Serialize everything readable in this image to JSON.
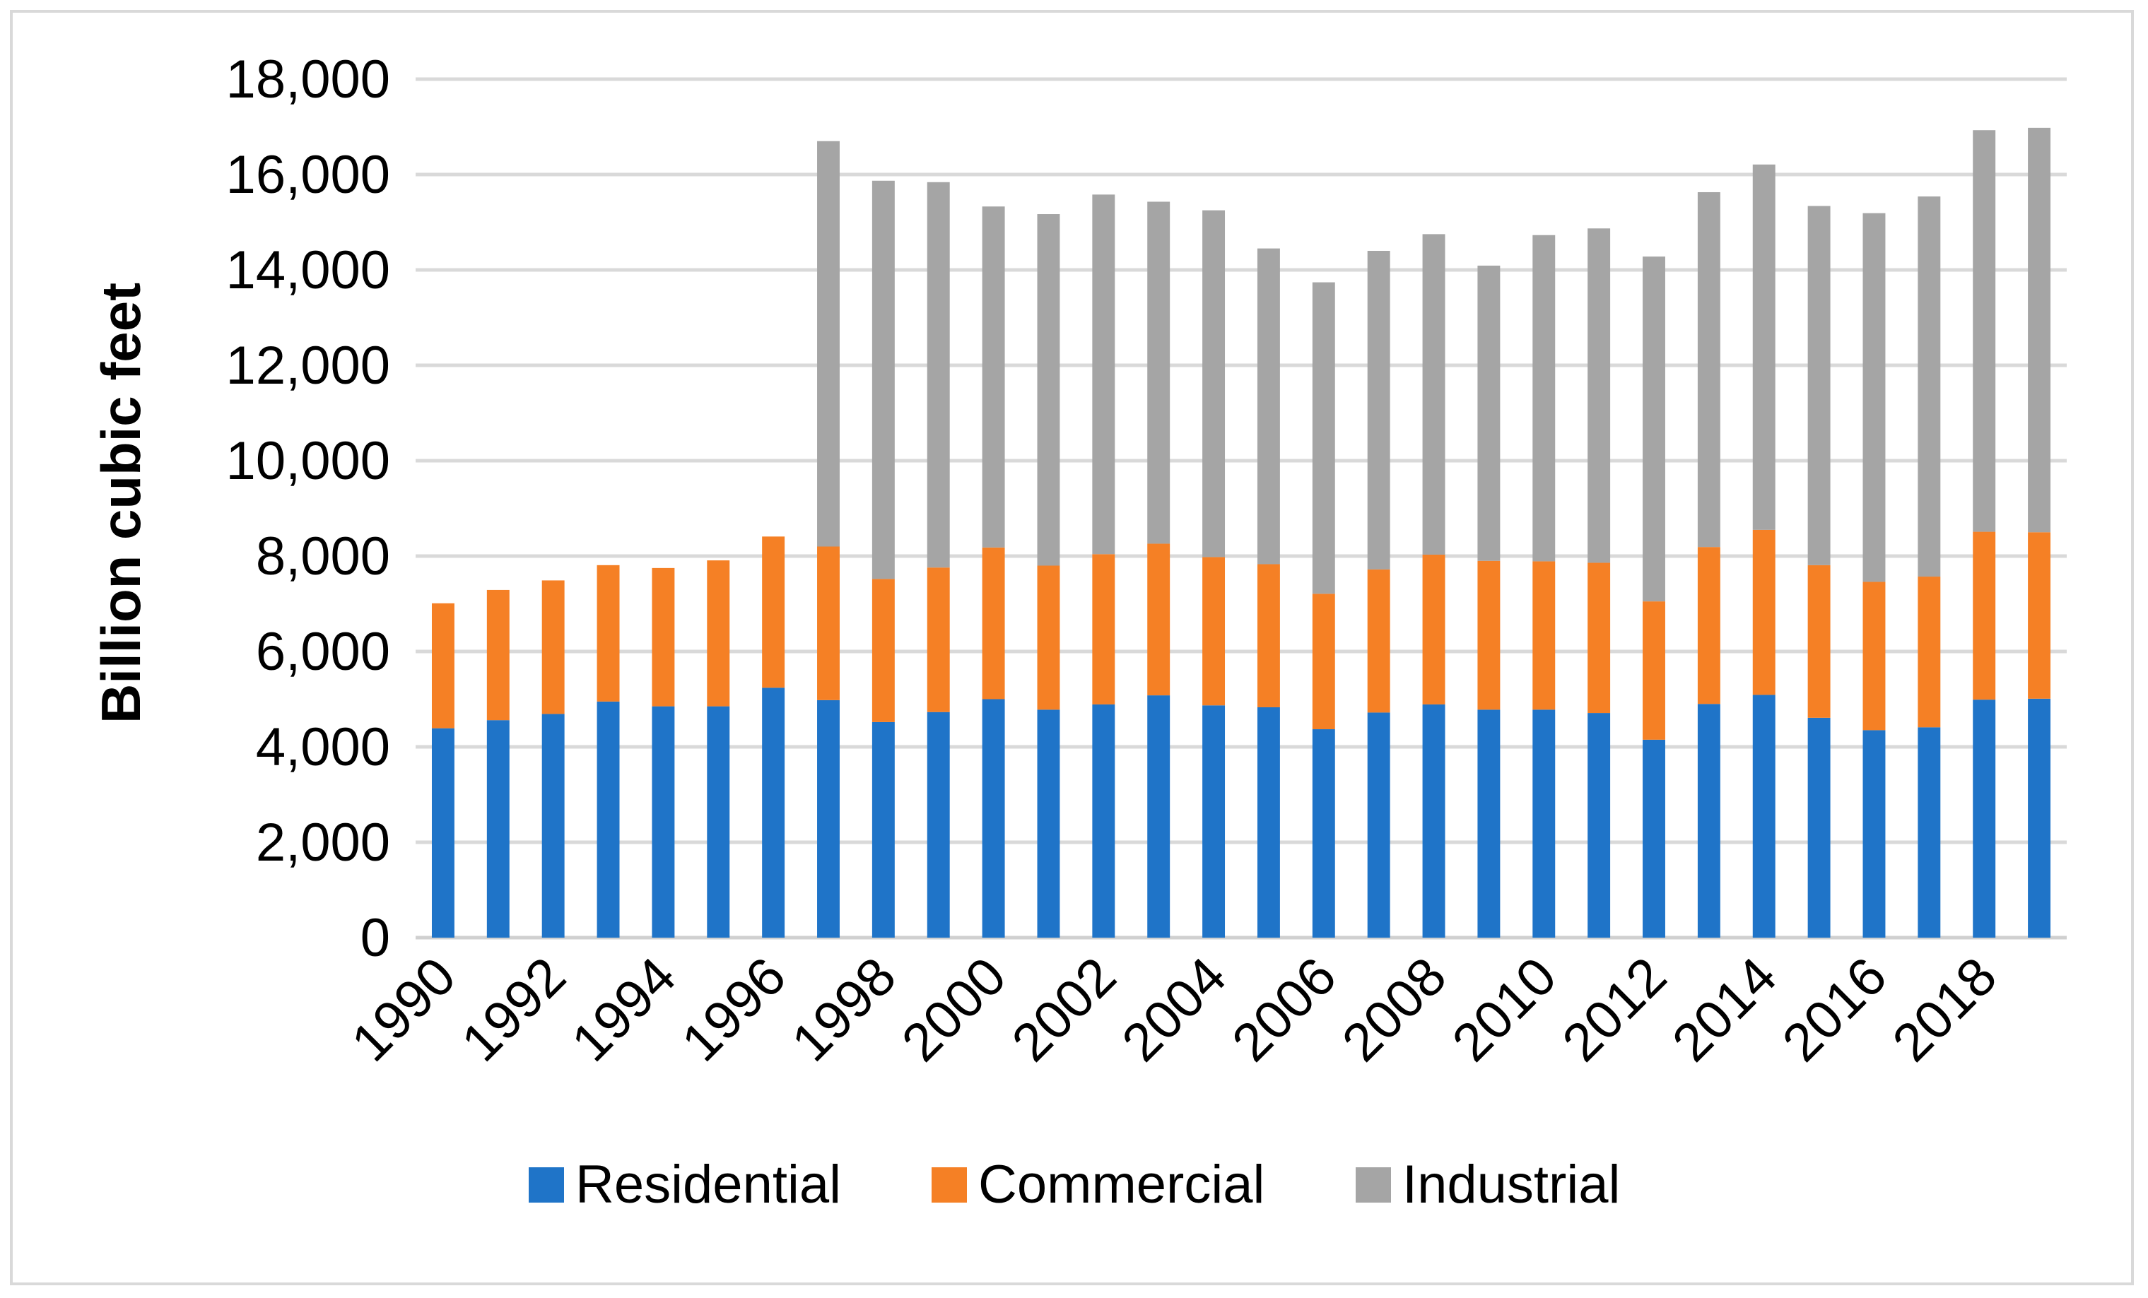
{
  "chart_data": {
    "type": "bar",
    "stacked": true,
    "title": "",
    "xlabel": "",
    "ylabel": "Billion cubic feet",
    "ylim": [
      0,
      18000
    ],
    "y_ticks": [
      0,
      2000,
      4000,
      6000,
      8000,
      10000,
      12000,
      14000,
      16000,
      18000
    ],
    "y_tick_labels": [
      "0",
      "2,000",
      "4,000",
      "6,000",
      "8,000",
      "10,000",
      "12,000",
      "14,000",
      "16,000",
      "18,000"
    ],
    "grid": true,
    "legend_position": "bottom",
    "categories": [
      "1990",
      "1991",
      "1992",
      "1993",
      "1994",
      "1995",
      "1996",
      "1997",
      "1998",
      "1999",
      "2000",
      "2001",
      "2002",
      "2003",
      "2004",
      "2005",
      "2006",
      "2007",
      "2008",
      "2009",
      "2010",
      "2011",
      "2012",
      "2013",
      "2014",
      "2015",
      "2016",
      "2017",
      "2018",
      "2019"
    ],
    "x_tick_labels": [
      "1990",
      "",
      "1992",
      "",
      "1994",
      "",
      "1996",
      "",
      "1998",
      "",
      "2000",
      "",
      "2002",
      "",
      "2004",
      "",
      "2006",
      "",
      "2008",
      "",
      "2010",
      "",
      "2012",
      "",
      "2014",
      "",
      "2016",
      "",
      "2018",
      ""
    ],
    "series": [
      {
        "name": "Residential",
        "color": "#1f74c8",
        "values": [
          4390,
          4560,
          4690,
          4950,
          4850,
          4850,
          5240,
          4980,
          4520,
          4730,
          5000,
          4780,
          4890,
          5080,
          4870,
          4830,
          4370,
          4720,
          4890,
          4780,
          4780,
          4710,
          4150,
          4900,
          5090,
          4610,
          4350,
          4410,
          4990,
          5010
        ]
      },
      {
        "name": "Commercial",
        "color": "#f58025",
        "values": [
          2620,
          2730,
          2800,
          2860,
          2900,
          3060,
          3170,
          3220,
          3000,
          3030,
          3180,
          3020,
          3150,
          3180,
          3110,
          3000,
          2840,
          3000,
          3140,
          3120,
          3110,
          3150,
          2900,
          3290,
          3460,
          3200,
          3110,
          3160,
          3520,
          3490
        ]
      },
      {
        "name": "Industrial",
        "color": "#a5a5a5",
        "values": [
          0,
          0,
          0,
          0,
          0,
          0,
          0,
          8500,
          8350,
          8080,
          7150,
          7370,
          7540,
          7170,
          7270,
          6620,
          6530,
          6680,
          6720,
          6190,
          6840,
          7010,
          7230,
          7440,
          7660,
          7530,
          7730,
          7970,
          8420,
          8480
        ]
      }
    ]
  }
}
